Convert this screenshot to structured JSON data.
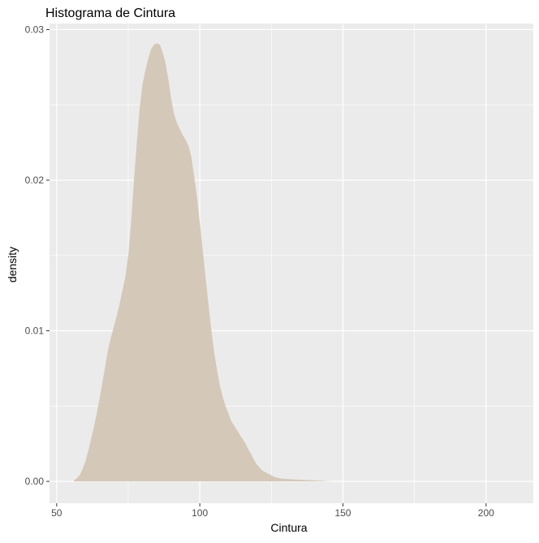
{
  "chart_data": {
    "type": "area",
    "title": "Histograma de Cintura",
    "xlabel": "Cintura",
    "ylabel": "density",
    "xlim": [
      47.5,
      216.5
    ],
    "ylim": [
      -0.00145,
      0.0304
    ],
    "x_ticks": [
      50,
      100,
      150,
      200
    ],
    "y_ticks": [
      0.0,
      0.01,
      0.02,
      0.03
    ],
    "x_tick_labels": [
      "50",
      "100",
      "150",
      "200"
    ],
    "y_tick_labels": [
      "0.00",
      "0.01",
      "0.02",
      "0.03"
    ],
    "grid": true,
    "fill_color": "#d4c8b9",
    "panel_background": "#ebebeb",
    "grid_color": "#ffffff",
    "series": [
      {
        "x": [
          56.0,
          57.0,
          58.0,
          59.0,
          60.0,
          61.0,
          62.0,
          63.0,
          64.0,
          65.0,
          66.0,
          67.0,
          68.0,
          69.0,
          70.0,
          71.0,
          72.0,
          73.0,
          74.0,
          75.0,
          76.0,
          77.0,
          78.0,
          79.0,
          80.0,
          81.0,
          82.0,
          83.0,
          84.0,
          85.0,
          86.0,
          87.0,
          88.0,
          89.0,
          90.0,
          91.0,
          92.0,
          93.0,
          94.0,
          95.0,
          96.0,
          97.0,
          98.0,
          99.0,
          100.0,
          101.0,
          102.0,
          103.0,
          104.0,
          105.0,
          106.0,
          107.0,
          108.0,
          109.0,
          110.0,
          111.0,
          112.0,
          113.0,
          114.0,
          115.0,
          116.0,
          117.0,
          118.0,
          119.0,
          120.0,
          121.0,
          122.0,
          123.0,
          124.0,
          125.0,
          126.0,
          127.0,
          128.0,
          129.0,
          130.0,
          131.0,
          132.0,
          133.0,
          134.0,
          135.0,
          136.0,
          137.0,
          138.0,
          139.0,
          140.0,
          141.0,
          142.0,
          143.0,
          144.0,
          145.0,
          146.0,
          147.0,
          148.0,
          149.0,
          150.0
        ],
        "y": [
          5e-05,
          0.0002,
          0.0004,
          0.0008,
          0.0013,
          0.002,
          0.0028,
          0.0036,
          0.0045,
          0.0055,
          0.0066,
          0.0077,
          0.0088,
          0.0096,
          0.0103,
          0.011,
          0.0118,
          0.0127,
          0.0136,
          0.015,
          0.0172,
          0.02,
          0.0225,
          0.0248,
          0.0264,
          0.0273,
          0.0281,
          0.0287,
          0.029,
          0.0291,
          0.029,
          0.0285,
          0.0278,
          0.0267,
          0.0254,
          0.0244,
          0.0238,
          0.0234,
          0.023,
          0.0227,
          0.0223,
          0.0216,
          0.0203,
          0.0189,
          0.0172,
          0.0154,
          0.0136,
          0.0118,
          0.0101,
          0.0086,
          0.0074,
          0.0064,
          0.0056,
          0.005,
          0.0045,
          0.004,
          0.0037,
          0.0034,
          0.0031,
          0.0028,
          0.0025,
          0.0021,
          0.0018,
          0.0014,
          0.0011,
          0.0009,
          0.0007,
          0.0006,
          0.0005,
          0.0004,
          0.0003,
          0.00025,
          0.0002,
          0.00018,
          0.00016,
          0.00015,
          0.00014,
          0.00013,
          0.00012,
          0.00011,
          0.0001,
          9e-05,
          8e-05,
          7e-05,
          6e-05,
          5e-05,
          4e-05,
          3e-05,
          2e-05,
          1e-05,
          0.0,
          0.0,
          0.0,
          0.0,
          0.0
        ]
      }
    ]
  }
}
